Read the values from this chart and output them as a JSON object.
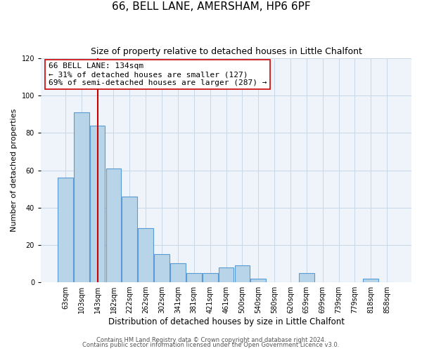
{
  "title": "66, BELL LANE, AMERSHAM, HP6 6PF",
  "subtitle": "Size of property relative to detached houses in Little Chalfont",
  "xlabel": "Distribution of detached houses by size in Little Chalfont",
  "ylabel": "Number of detached properties",
  "bin_labels": [
    "63sqm",
    "103sqm",
    "143sqm",
    "182sqm",
    "222sqm",
    "262sqm",
    "302sqm",
    "341sqm",
    "381sqm",
    "421sqm",
    "461sqm",
    "500sqm",
    "540sqm",
    "580sqm",
    "620sqm",
    "659sqm",
    "699sqm",
    "739sqm",
    "779sqm",
    "818sqm",
    "858sqm"
  ],
  "bar_values": [
    56,
    91,
    84,
    61,
    46,
    29,
    15,
    10,
    5,
    5,
    8,
    9,
    2,
    0,
    0,
    5,
    0,
    0,
    0,
    2,
    0
  ],
  "bar_color": "#b8d4e8",
  "bar_edgecolor": "#5b9bd5",
  "bar_linewidth": 0.8,
  "vline_x": 2,
  "vline_color": "#cc0000",
  "vline_linewidth": 1.5,
  "annotation_lines": [
    "66 BELL LANE: 134sqm",
    "← 31% of detached houses are smaller (127)",
    "69% of semi-detached houses are larger (287) →"
  ],
  "annotation_box_edgecolor": "#cc0000",
  "annotation_box_facecolor": "#ffffff",
  "ylim": [
    0,
    120
  ],
  "yticks": [
    0,
    20,
    40,
    60,
    80,
    100,
    120
  ],
  "grid_color": "#c8d8e8",
  "background_color": "#eef4fa",
  "footer_line1": "Contains HM Land Registry data © Crown copyright and database right 2024.",
  "footer_line2": "Contains public sector information licensed under the Open Government Licence v3.0.",
  "title_fontsize": 11,
  "subtitle_fontsize": 9,
  "xlabel_fontsize": 8.5,
  "ylabel_fontsize": 8,
  "tick_fontsize": 7,
  "footer_fontsize": 6,
  "annotation_fontsize": 8
}
